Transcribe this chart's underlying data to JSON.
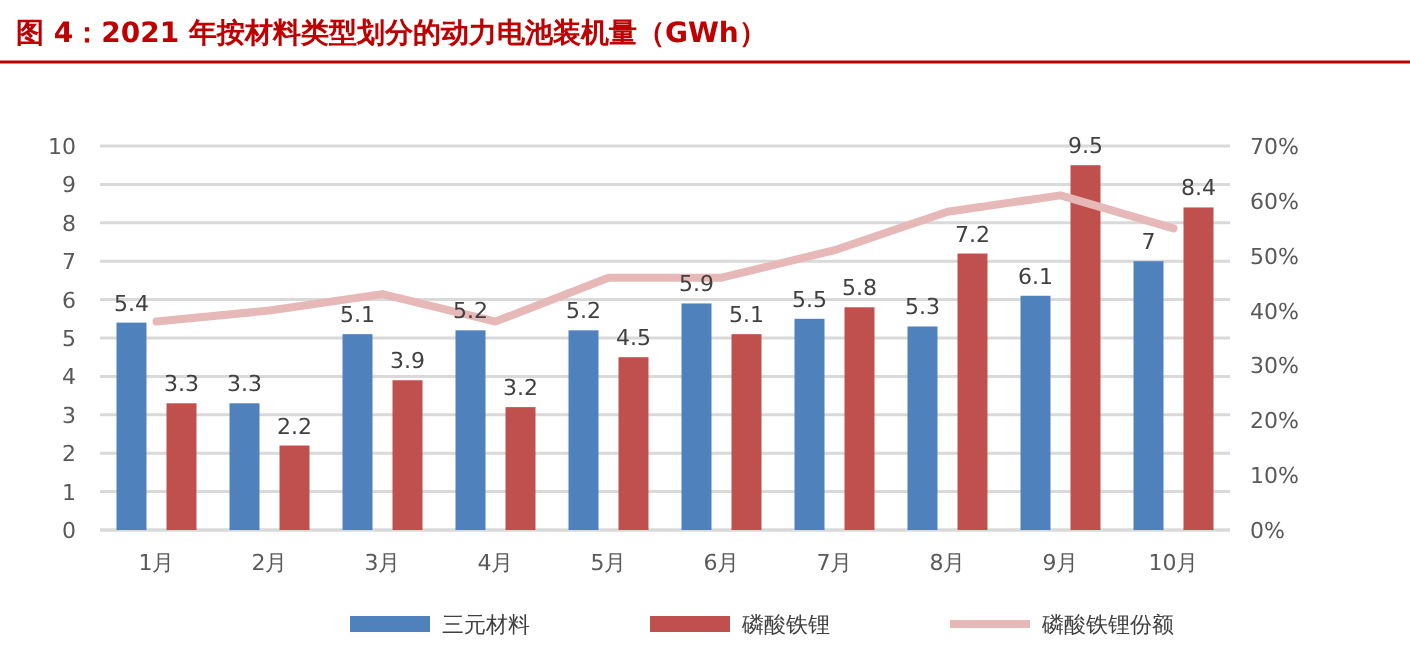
{
  "chart_data": {
    "type": "bar",
    "title": "图 4：2021 年按材料类型划分的动力电池装机量（GWh）",
    "categories": [
      "1月",
      "2月",
      "3月",
      "4月",
      "5月",
      "6月",
      "7月",
      "8月",
      "9月",
      "10月"
    ],
    "series": [
      {
        "name": "三元材料",
        "color": "#4f81bd",
        "values": [
          5.4,
          3.3,
          5.1,
          5.2,
          5.2,
          5.9,
          5.5,
          5.3,
          6.1,
          7
        ],
        "value_labels": [
          "5.4",
          "3.3",
          "5.1",
          "5.2",
          "5.2",
          "5.9",
          "5.5",
          "5.3",
          "6.1",
          "7"
        ]
      },
      {
        "name": "磷酸铁锂",
        "color": "#c0504d",
        "values": [
          3.3,
          2.2,
          3.9,
          3.2,
          4.5,
          5.1,
          5.8,
          7.2,
          9.5,
          8.4
        ],
        "value_labels": [
          "3.3",
          "2.2",
          "3.9",
          "3.2",
          "4.5",
          "5.1",
          "5.8",
          "7.2",
          "9.5",
          "8.4"
        ]
      },
      {
        "name": "磷酸铁锂份额",
        "type": "line",
        "axis": "y2",
        "color": "#e6b9b8",
        "values": [
          38,
          40,
          43,
          38,
          46,
          46,
          51,
          58,
          61,
          55
        ]
      }
    ],
    "ylim": [
      0,
      10
    ],
    "yticks": [
      0,
      1,
      2,
      3,
      4,
      5,
      6,
      7,
      8,
      9,
      10
    ],
    "y2lim": [
      0,
      70
    ],
    "y2ticks": [
      {
        "value": 0,
        "label": "0%"
      },
      {
        "value": 10,
        "label": "10%"
      },
      {
        "value": 20,
        "label": "20%"
      },
      {
        "value": 30,
        "label": "30%"
      },
      {
        "value": 40,
        "label": "40%"
      },
      {
        "value": 50,
        "label": "50%"
      },
      {
        "value": 60,
        "label": "60%"
      },
      {
        "value": 70,
        "label": "70%"
      }
    ],
    "grid": "y",
    "legend": "bottom",
    "marker": "none"
  }
}
